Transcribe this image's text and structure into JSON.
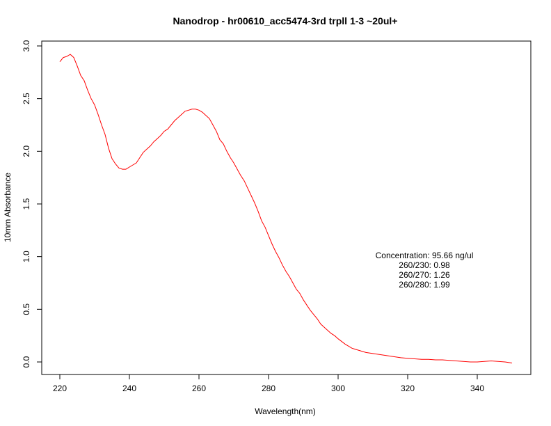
{
  "chart_data": {
    "type": "line",
    "title": "Nanodrop - hr00610_acc5474-3rd trpll 1-3 ~20ul+",
    "xlabel": "Wavelength(nm)",
    "ylabel": "10mm Absorbance",
    "xlim": [
      220,
      350
    ],
    "ylim": [
      0,
      3
    ],
    "xticks": [
      "220",
      "240",
      "260",
      "280",
      "300",
      "320",
      "340"
    ],
    "yticks": [
      "0.0",
      "0.5",
      "1.0",
      "1.5",
      "2.0",
      "2.5",
      "3.0"
    ],
    "grid": false,
    "line_color": "#ff0000",
    "series": [
      {
        "x": [
          220,
          221,
          222,
          223,
          224,
          225,
          226,
          227,
          228,
          229,
          230,
          231,
          232,
          233,
          234,
          235,
          236,
          237,
          238,
          239,
          240,
          241,
          242,
          243,
          244,
          245,
          246,
          247,
          248,
          249,
          250,
          251,
          252,
          253,
          254,
          255,
          256,
          257,
          258,
          259,
          260,
          261,
          262,
          263,
          264,
          265,
          266,
          267,
          268,
          269,
          270,
          271,
          272,
          273,
          274,
          275,
          276,
          277,
          278,
          279,
          280,
          281,
          282,
          283,
          284,
          285,
          286,
          287,
          288,
          289,
          290,
          291,
          292,
          293,
          294,
          295,
          296,
          297,
          298,
          299,
          300,
          302,
          304,
          306,
          308,
          310,
          312,
          314,
          316,
          318,
          320,
          322,
          324,
          326,
          328,
          330,
          332,
          334,
          336,
          338,
          340,
          342,
          344,
          346,
          348,
          350
        ],
        "y": [
          2.85,
          2.89,
          2.9,
          2.92,
          2.89,
          2.81,
          2.72,
          2.67,
          2.58,
          2.5,
          2.44,
          2.35,
          2.25,
          2.16,
          2.03,
          1.93,
          1.88,
          1.84,
          1.83,
          1.83,
          1.85,
          1.87,
          1.89,
          1.94,
          1.99,
          2.02,
          2.05,
          2.09,
          2.12,
          2.15,
          2.19,
          2.21,
          2.25,
          2.29,
          2.32,
          2.35,
          2.38,
          2.39,
          2.4,
          2.4,
          2.39,
          2.37,
          2.34,
          2.31,
          2.25,
          2.19,
          2.11,
          2.07,
          2.0,
          1.94,
          1.89,
          1.83,
          1.77,
          1.72,
          1.65,
          1.58,
          1.51,
          1.43,
          1.34,
          1.28,
          1.2,
          1.12,
          1.05,
          0.99,
          0.92,
          0.86,
          0.81,
          0.75,
          0.69,
          0.65,
          0.59,
          0.54,
          0.49,
          0.45,
          0.41,
          0.36,
          0.33,
          0.3,
          0.27,
          0.25,
          0.22,
          0.17,
          0.13,
          0.11,
          0.09,
          0.08,
          0.07,
          0.06,
          0.05,
          0.04,
          0.035,
          0.03,
          0.025,
          0.025,
          0.02,
          0.02,
          0.015,
          0.01,
          0.005,
          0.0,
          0.0,
          0.005,
          0.01,
          0.005,
          0.0,
          -0.01
        ]
      }
    ],
    "annotations": [
      "Concentration: 95.66 ng/ul",
      "260/230: 0.98",
      "260/270: 1.26",
      "260/280: 1.99"
    ]
  }
}
